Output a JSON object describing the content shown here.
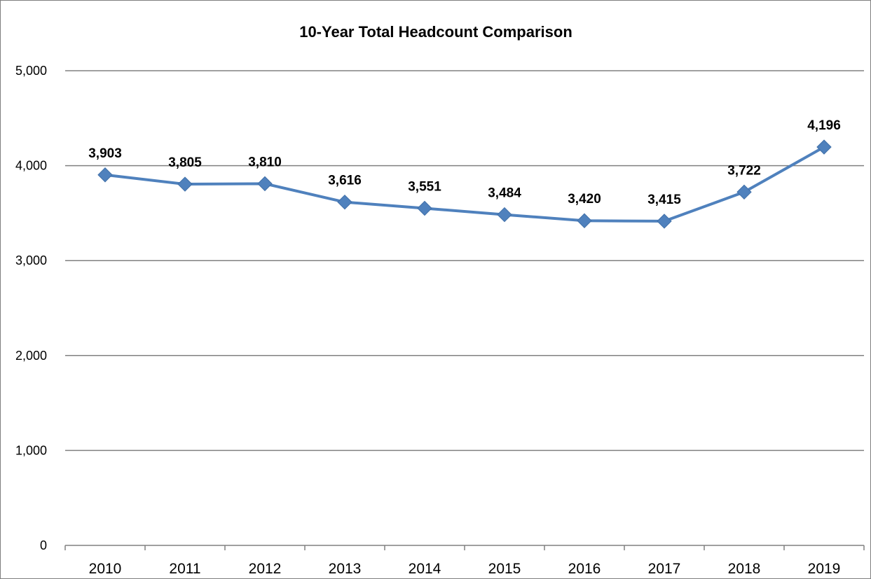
{
  "chart_data": {
    "type": "line",
    "title": "10-Year Total Headcount Comparison",
    "xlabel": "",
    "ylabel": "",
    "categories": [
      "2010",
      "2011",
      "2012",
      "2013",
      "2014",
      "2015",
      "2016",
      "2017",
      "2018",
      "2019"
    ],
    "series": [
      {
        "values": [
          3903,
          3805,
          3810,
          3616,
          3551,
          3484,
          3420,
          3415,
          3722,
          4196
        ],
        "data_labels": [
          "3,903",
          "3,805",
          "3,810",
          "3,616",
          "3,551",
          "3,484",
          "3,420",
          "3,415",
          "3,722",
          "4,196"
        ],
        "color": "#4f81bd",
        "marker": "diamond"
      }
    ],
    "ylim": [
      0,
      5000
    ],
    "yticks": [
      0,
      1000,
      2000,
      3000,
      4000,
      5000
    ],
    "ytick_labels": [
      "0",
      "1,000",
      "2,000",
      "3,000",
      "4,000",
      "5,000"
    ],
    "grid": true,
    "gridline_color": "#808080",
    "legend": "none"
  }
}
